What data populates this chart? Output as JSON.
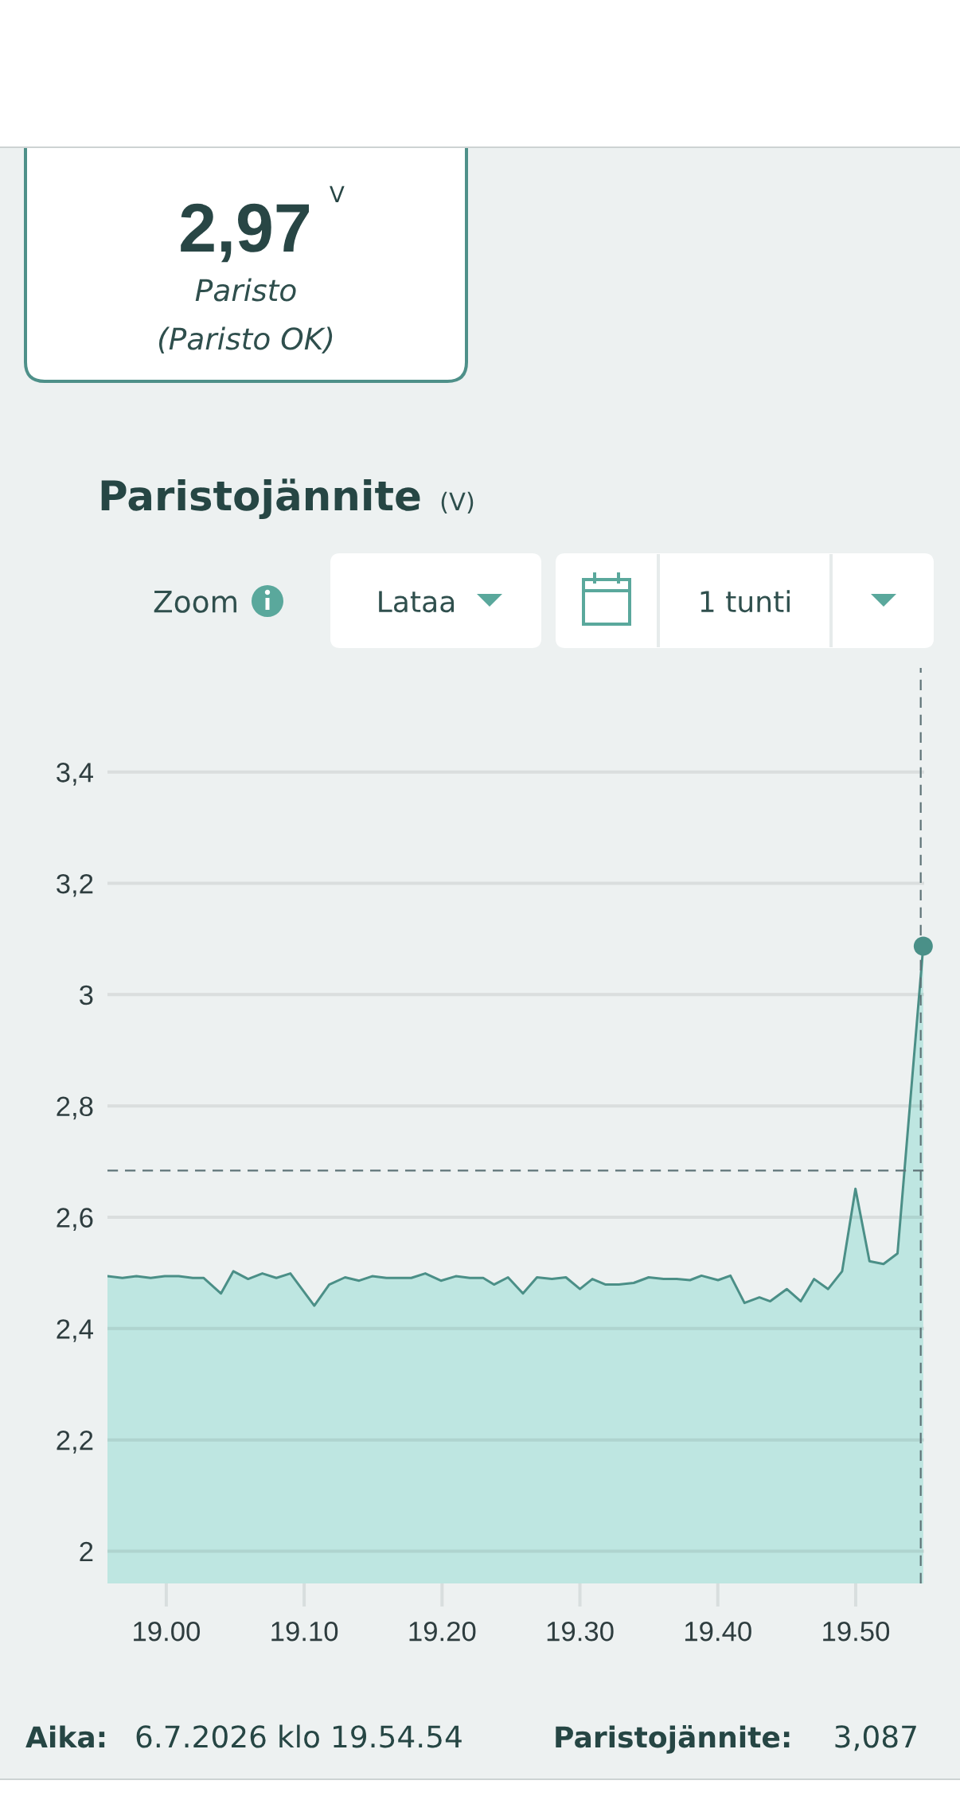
{
  "chart_data": {
    "type": "area",
    "title": "Paristojännite",
    "subtitle": "(V)",
    "x": [
      "2026-07-06T18:55:44",
      "2026-07-06T18:56:49",
      "2026-07-06T18:57:50",
      "2026-07-06T18:58:52",
      "2026-07-06T18:59:53",
      "2026-07-06T19:00:54",
      "2026-07-06T19:01:55",
      "2026-07-06T19:02:42",
      "2026-07-06T19:03:58",
      "2026-07-06T19:04:52",
      "2026-07-06T19:05:56",
      "2026-07-06T19:06:58",
      "2026-07-06T19:07:59",
      "2026-07-06T19:09:00",
      "2026-07-06T19:10:44",
      "2026-07-06T19:11:49",
      "2026-07-06T19:12:58",
      "2026-07-06T19:13:59",
      "2026-07-06T19:14:56",
      "2026-07-06T19:15:58",
      "2026-07-06T19:17:02",
      "2026-07-06T19:17:46",
      "2026-07-06T19:18:47",
      "2026-07-06T19:19:55",
      "2026-07-06T19:21:00",
      "2026-07-06T19:22:01",
      "2026-07-06T19:22:59",
      "2026-07-06T19:23:46",
      "2026-07-06T19:24:47",
      "2026-07-06T19:25:52",
      "2026-07-06T19:26:53",
      "2026-07-06T19:27:58",
      "2026-07-06T19:28:59",
      "2026-07-06T19:30:00",
      "2026-07-06T19:30:54",
      "2026-07-06T19:31:52",
      "2026-07-06T19:32:49",
      "2026-07-06T19:33:54",
      "2026-07-06T19:34:59",
      "2026-07-06T19:36:04",
      "2026-07-06T19:37:01",
      "2026-07-06T19:37:59",
      "2026-07-06T19:38:49",
      "2026-07-06T19:40:01",
      "2026-07-06T19:40:55",
      "2026-07-06T19:41:56",
      "2026-07-06T19:43:01",
      "2026-07-06T19:43:48",
      "2026-07-06T19:45:00",
      "2026-07-06T19:46:01",
      "2026-07-06T19:46:59",
      "2026-07-06T19:48:00",
      "2026-07-06T19:49:01",
      "2026-07-06T19:49:59",
      "2026-07-06T19:51:00",
      "2026-07-06T19:52:01",
      "2026-07-06T19:53:02",
      "2026-07-06T19:54:54"
    ],
    "series": [
      {
        "color": "#4b8f87",
        "values": [
          2.494,
          2.491,
          2.494,
          2.491,
          2.494,
          2.494,
          2.491,
          2.491,
          2.463,
          2.503,
          2.489,
          2.499,
          2.491,
          2.499,
          2.441,
          2.479,
          2.492,
          2.486,
          2.494,
          2.491,
          2.491,
          2.491,
          2.499,
          2.486,
          2.494,
          2.491,
          2.491,
          2.479,
          2.492,
          2.463,
          2.492,
          2.489,
          2.492,
          2.471,
          2.489,
          2.479,
          2.479,
          2.482,
          2.492,
          2.489,
          2.489,
          2.487,
          2.495,
          2.487,
          2.495,
          2.446,
          2.456,
          2.449,
          2.471,
          2.449,
          2.489,
          2.471,
          2.503,
          2.651,
          2.521,
          2.516,
          2.535,
          3.087
        ]
      },
      {
        "type": "scatter",
        "x": [
          "2026-07-06T19:54:54"
        ],
        "values": [
          3.087
        ],
        "color": "#4a9088",
        "marker": "circle"
      }
    ],
    "xlim": [
      "2026-07-06T18:55:44",
      "2026-07-06T19:54:58"
    ],
    "xticks": [
      {
        "value": "2026-07-06T19:00",
        "label": "19.00"
      },
      {
        "value": "2026-07-06T19:10",
        "label": "19.10"
      },
      {
        "value": "2026-07-06T19:20",
        "label": "19.20"
      },
      {
        "value": "2026-07-06T19:30",
        "label": "19.30"
      },
      {
        "value": "2026-07-06T19:40",
        "label": "19.40"
      },
      {
        "value": "2026-07-06T19:50",
        "label": "19.50"
      }
    ],
    "ylim": [
      1.942,
      3.587
    ],
    "yticks": [
      2,
      {
        "value": 2.2,
        "label": "2,2"
      },
      {
        "value": 2.4,
        "label": "2,4"
      },
      {
        "value": 2.6,
        "label": "2,6"
      },
      {
        "value": 2.8,
        "label": "2,8"
      },
      3,
      {
        "value": 3.2,
        "label": "3,2"
      },
      {
        "value": 3.4,
        "label": "3,4"
      }
    ],
    "grid": "y",
    "ref_lines": [
      {
        "axis": "y",
        "value": 2.684,
        "line_style": "dashed",
        "color": "#5f7478"
      },
      {
        "axis": "x",
        "value": "2026-07-06T19:54:43",
        "line_style": "dashed",
        "color": "#5f7478"
      }
    ],
    "annotations": [
      "2,97",
      "V",
      "Paristo",
      "(Paristo OK)",
      "Zoom",
      "Lataa",
      "1 tunti",
      "Aika:",
      "6.7.2026 klo 19.54.54",
      "Paristojännite:",
      "3,087"
    ]
  }
}
